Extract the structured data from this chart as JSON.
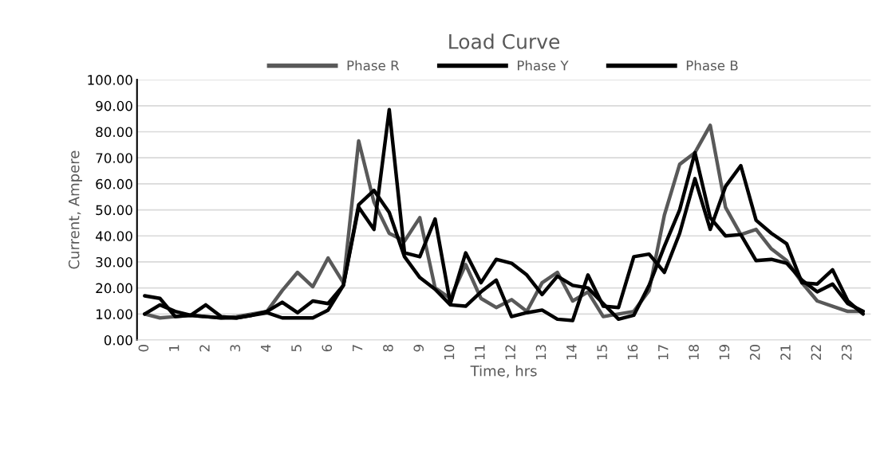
{
  "chart_data": {
    "type": "line",
    "title": "Load Curve",
    "xlabel": "Time, hrs",
    "ylabel": "Current, Ampere",
    "categories": [
      "0",
      null,
      "1",
      null,
      "2",
      null,
      "3",
      null,
      "4",
      null,
      "5",
      null,
      "6",
      null,
      "7",
      null,
      "8",
      null,
      "9",
      null,
      "10",
      null,
      "11",
      null,
      "12",
      null,
      "13",
      null,
      "14",
      null,
      "15",
      null,
      "16",
      null,
      "17",
      null,
      "18",
      null,
      "19",
      null,
      "20",
      null,
      "21",
      null,
      "22",
      null,
      "23",
      null
    ],
    "series": [
      {
        "name": "Phase R",
        "color": "#595959",
        "values": [
          10,
          8.5,
          9,
          9.5,
          9,
          8.5,
          9,
          10,
          11,
          19,
          26,
          20.5,
          31.5,
          22,
          76.5,
          53,
          41,
          38,
          47,
          20,
          16,
          29,
          16,
          12.5,
          15.5,
          11,
          22,
          26,
          15,
          18.5,
          9,
          10,
          11,
          19,
          48,
          67.5,
          72,
          82.5,
          51,
          40.5,
          42.5,
          35,
          30.5,
          22,
          15,
          13,
          11,
          11
        ]
      },
      {
        "name": "Phase Y",
        "color": "#000000",
        "values": [
          17,
          16,
          9,
          9.5,
          9,
          8.5,
          8.5,
          9.5,
          10.5,
          8.5,
          8.5,
          8.5,
          11.5,
          21,
          52,
          57.5,
          49,
          32,
          24,
          19.5,
          13.5,
          13,
          18.5,
          23,
          9,
          10.5,
          11.5,
          8,
          7.5,
          25,
          13,
          12.5,
          32,
          33,
          26,
          41,
          62,
          42.5,
          59,
          67,
          46,
          41,
          37,
          22,
          21.5,
          27,
          15,
          10
        ]
      },
      {
        "name": "Phase B",
        "color": "#000000",
        "values": [
          10,
          13.5,
          11,
          9.5,
          13.5,
          9,
          8.5,
          9.5,
          11,
          14.5,
          10.5,
          15,
          14,
          21,
          51,
          42.5,
          88.5,
          33.5,
          32,
          46.5,
          14,
          33.5,
          22,
          31,
          29.5,
          25,
          17.5,
          24.5,
          21,
          20,
          14,
          8,
          9.5,
          21,
          36,
          50,
          72,
          47,
          40,
          40.5,
          30.5,
          31,
          29.5,
          23,
          18.5,
          21.5,
          14,
          11
        ]
      }
    ],
    "ylim": [
      0,
      100
    ],
    "yticks": [
      {
        "value": 0,
        "label": "0.00"
      },
      {
        "value": 10,
        "label": "10.00"
      },
      {
        "value": 20,
        "label": "20.00"
      },
      {
        "value": 30,
        "label": "30.00"
      },
      {
        "value": 40,
        "label": "40.00"
      },
      {
        "value": 50,
        "label": "50.00"
      },
      {
        "value": 60,
        "label": "60.00"
      },
      {
        "value": 70,
        "label": "70.00"
      },
      {
        "value": 80,
        "label": "80.00"
      },
      {
        "value": 90,
        "label": "90.00"
      },
      {
        "value": 100,
        "label": "100.00"
      }
    ],
    "grid": "y",
    "legend": "top",
    "line_style": "solid"
  }
}
